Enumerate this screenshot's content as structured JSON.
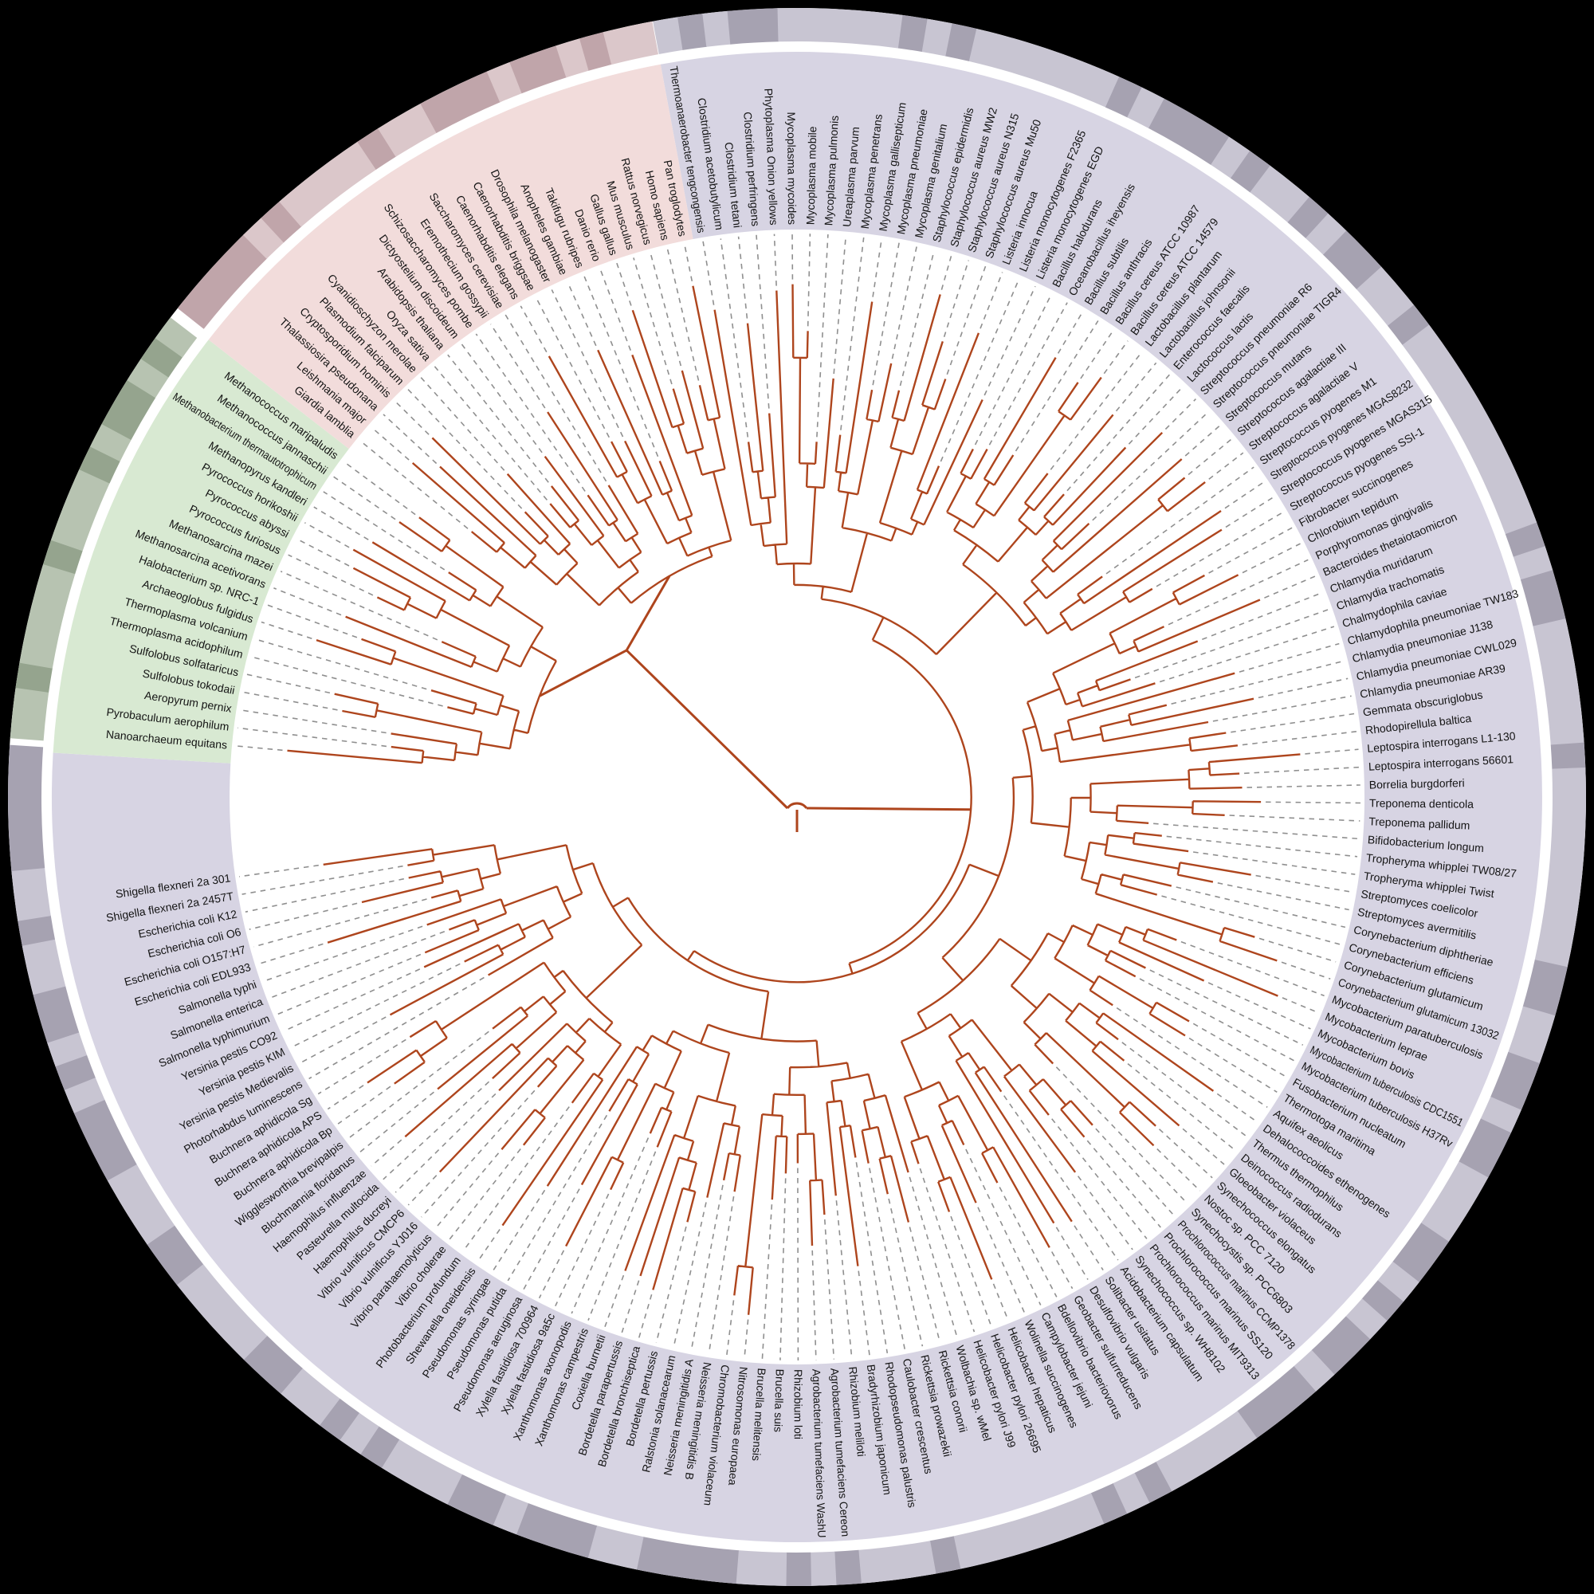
{
  "figure": {
    "kind": "circular-phylogenetic-tree",
    "leaf_count": 191
  },
  "colors": {
    "background": "#000000",
    "disc": "#ffffff",
    "branch": "#ae451d",
    "leader": "#8f8f8f",
    "label_text": "#141414",
    "sectors": {
      "bacteria": "#d7d4e3",
      "archaea": "#d8e9d2",
      "eukaryota": "#f2dcdb"
    },
    "ring": {
      "bacteria": {
        "light": "#c8c5d2",
        "dark": "#a6a2b1"
      },
      "archaea": {
        "light": "#b7c3b1",
        "dark": "#95a48e"
      },
      "eukaryota": {
        "light": "#dbc7ca",
        "dark": "#c0a5aa"
      }
    }
  },
  "species": {
    "bacteria": [
      "Thermoanaerobacter tengcongensis",
      "Clostridium acetobutylicum",
      "Clostridium tetani",
      "Clostridium perfringens",
      "Phytoplasma Onion yellows",
      "Mycoplasma mycoides",
      "Mycoplasma mobile",
      "Mycoplasma pulmonis",
      "Ureaplasma parvum",
      "Mycoplasma penetrans",
      "Mycoplasma gallisepticum",
      "Mycoplasma pneumoniae",
      "Mycoplasma genitalium",
      "Staphylococcus epidermidis",
      "Staphylococcus aureus MW2",
      "Staphylococcus aureus N315",
      "Staphylococcus aureus Mu50",
      "Listeria innocua",
      "Listeria monocytogenes F2365",
      "Listeria monocytogenes EGD",
      "Bacillus halodurans",
      "Oceanobacillus iheyensis",
      "Bacillus subtilis",
      "Bacillus anthracis",
      "Bacillus cereus ATCC 10987",
      "Bacillus cereus ATCC 14579",
      "Lactobacillus plantarum",
      "Lactobacillus johnsonii",
      "Enterococcus faecalis",
      "Lactococcus lactis",
      "Streptococcus pneumoniae R6",
      "Streptococcus pneumoniae TIGR4",
      "Streptococcus mutans",
      "Streptococcus agalactiae III",
      "Streptococcus agalactiae V",
      "Streptococcus pyogenes M1",
      "Streptococcus pyogenes MGAS8232",
      "Streptococcus pyogenes MGAS315",
      "Streptococcus pyogenes SSI-1",
      "Fibrobacter succinogenes",
      "Chlorobium tepidum",
      "Porphyromonas gingivalis",
      "Bacteroides thetaiotaomicron",
      "Chlamydia muridarum",
      "Chlamydia trachomatis",
      "Chalmydophila caviae",
      "Chlamydophila pneumoniae TW183",
      "Chlamydia pneumoniae J138",
      "Chlamydia pneumoniae CWL029",
      "Chlamydia pneumoniae AR39",
      "Gemmata obscuriglobus",
      "Rhodopirellula baltica",
      "Leptospira interrogans L1-130",
      "Leptospira interrogans 56601",
      "Borrelia burgdorferi",
      "Treponema denticola",
      "Treponema pallidum",
      "Bifidobacterium longum",
      "Tropheryma whipplei TW08/27",
      "Tropheryma whipplei Twist",
      "Streptomyces coelicolor",
      "Streptomyces avermitilis",
      "Corynebacterium diphtheriae",
      "Corynebacterium efficiens",
      "Corynebacterium glutamicum",
      "Corynebacterium glutamicum 13032",
      "Mycobacterium paratuberculosis",
      "Mycobacterium leprae",
      "Mycobacterium bovis",
      "Mycobacterium tuberculosis CDC1551",
      "Mycobacterium tuberculosis H37Rv",
      "Fusobacterium nucleatum",
      "Thermotoga maritima",
      "Aquifex aeolicus",
      "Dehalococcoides ethenogenes",
      "Thermus thermophilus",
      "Deinococcus radiodurans",
      "Gloeobacter violaceus",
      "Synechococcus elongatus",
      "Nostoc sp. PCC 7120",
      "Synechocystis sp. PCC6803",
      "Prochlorococcus marinus CCMP1378",
      "Prochlorococcus marinus SS120",
      "Prochlorococcus marinus MIT9313",
      "Synechococcus sp. WH8102",
      "Acidobacterium capsulatum",
      "Solibacter usitatus",
      "Desulfovibrio vulgaris",
      "Geobacter sulfurreducens",
      "Bdellovibrio bacteriovorus",
      "Campylobacter jejuni",
      "Wolinella succinogenes",
      "Helicobacter hepaticus",
      "Helicobacter pylori 26695",
      "Helicobacter pylori J99",
      "Wolbachia sp. wMel",
      "Rickettsia conorii",
      "Rickettsia prowazekii",
      "Caulobacter crescentus",
      "Rhodopseudomonas palustris",
      "Bradyrhizobium japonicum",
      "Rhizobium meliloti",
      "Agrobacterium tumefaciens Cereon",
      "Agrobacterium tumefaciens WashU",
      "Rhizobium loti",
      "Brucella suis",
      "Brucella melitensis",
      "Nitrosomonas europaea",
      "Chromobacterium violaceum",
      "Neisseria meningitidis B",
      "Neisseria meningitidis A",
      "Ralstonia solanacearum",
      "Bordetella pertussis",
      "Bordetella bronchiseptica",
      "Bordetella parapertussis",
      "Coxiella burnetii",
      "Xanthomonas campestris",
      "Xanthomonas axonopodis",
      "Xylella fastidiosa 9a5c",
      "Xylella fastidiosa 700964",
      "Pseudomonas aeruginosa",
      "Pseudomonas putida",
      "Pseudomonas syringae",
      "Shewanella oneidensis",
      "Photobacterium profundum",
      "Vibrio cholerae",
      "Vibrio parahaemolyticus",
      "Vibrio vulnificus YJ016",
      "Vibrio vulnificus CMCP6",
      "Haemophilus ducreyi",
      "Pasteurella multocida",
      "Haemophilus influenzae",
      "Blochmannia floridanus",
      "Wigglesworthia brevipalpis",
      "Buchnera aphidicola Bp",
      "Buchnera aphidicola APS",
      "Buchnera aphidicola Sg",
      "Photorhabdus luminescens",
      "Yersinia pestis Medievalis",
      "Yersinia pestis KIM",
      "Yersinia pestis CO92",
      "Salmonella typhimurium",
      "Salmonella enterica",
      "Salmonella typhi",
      "Escherichia coli EDL933",
      "Escherichia coli O157:H7",
      "Escherichia coli O6",
      "Escherichia coli K12",
      "Shigella flexneri 2a 2457T",
      "Shigella flexneri 2a 301"
    ],
    "archaea": [
      "Nanoarchaeum equitans",
      "Pyrobaculum aerophilum",
      "Aeropyrum pernix",
      "Sulfolobus tokodaii",
      "Sulfolobus solfataricus",
      "Thermoplasma acidophilum",
      "Thermoplasma volcanium",
      "Archaeoglobus fulgidus",
      "Halobacterium sp. NRC-1",
      "Methanosarcina acetivorans",
      "Methanosarcina mazei",
      "Pyrococcus furiosus",
      "Pyrococcus abyssi",
      "Pyrococcus horikoshii",
      "Methanopyrus kandleri",
      "Methanobacterium thermautotrophicum",
      "Methanococcus jannaschii",
      "Methanococcus maripaludis"
    ],
    "eukaryota": [
      "Giardia lamblia",
      "Leishmania major",
      "Thalassiosira pseudonana",
      "Cryptosporidium hominis",
      "Plasmodium falciparum",
      "Cyanidioschyzon merolae",
      "Oryza sativa",
      "Arabidopsis thaliana",
      "Dictyostelium discoideum",
      "Schizosaccharomyces pombe",
      "Eremothecium gossypii",
      "Saccharomyces cerevisiae",
      "Caenorhabditis elegans",
      "Caenorhabditis briggsae",
      "Drosophila melanogaster",
      "Anopheles gambiae",
      "Takifugu rubripes",
      "Danio rerio",
      "Gallus gallus",
      "Mus musculus",
      "Rattus norvegicus",
      "Homo sapiens",
      "Pan troglodytes"
    ]
  }
}
